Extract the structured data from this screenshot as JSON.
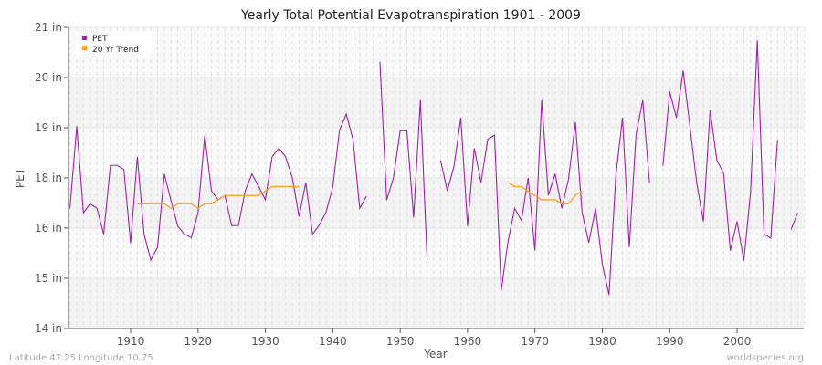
{
  "chart_data": {
    "type": "line",
    "title": "Yearly Total Potential Evapotranspiration 1901 - 2009",
    "xlabel": "Year",
    "ylabel": "PET",
    "xlim": [
      1901,
      2010
    ],
    "x_ticks": [
      1910,
      1920,
      1930,
      1940,
      1950,
      1960,
      1970,
      1980,
      1990,
      2000
    ],
    "y_ticks": [
      14,
      15,
      16,
      18,
      19,
      20,
      21
    ],
    "y_tick_labels": [
      "14 in",
      "15 in",
      "16 in",
      "18 in",
      "19 in",
      "20 in",
      "21 in"
    ],
    "grid": true,
    "legend_placement": "top-left",
    "series": [
      {
        "name": "PET",
        "color": "#a020a8",
        "start_year": 1901,
        "values": [
          16.79,
          19.03,
          16.61,
          16.97,
          16.79,
          15.88,
          18.25,
          18.25,
          18.17,
          15.7,
          18.42,
          15.88,
          15.36,
          15.62,
          18.08,
          17.09,
          16.08,
          15.88,
          15.81,
          16.61,
          18.85,
          17.48,
          17.13,
          17.3,
          16.1,
          16.1,
          17.48,
          18.08,
          17.66,
          17.13,
          18.42,
          18.59,
          18.42,
          18.0,
          16.46,
          17.82,
          15.88,
          16.12,
          16.64,
          17.64,
          18.95,
          19.27,
          18.77,
          16.79,
          17.27,
          null,
          20.31,
          17.12,
          18.0,
          18.94,
          18.94,
          16.42,
          19.55,
          15.36,
          null,
          18.35,
          17.48,
          18.24,
          19.2,
          16.08,
          18.59,
          17.82,
          18.77,
          18.85,
          14.76,
          15.73,
          16.79,
          16.3,
          18.0,
          15.55,
          19.55,
          17.31,
          18.08,
          16.79,
          17.97,
          19.11,
          16.63,
          15.71,
          16.79,
          15.28,
          14.67,
          18.03,
          19.2,
          15.62,
          18.85,
          19.55,
          17.82,
          null,
          18.24,
          19.72,
          19.2,
          20.14,
          19.03,
          17.82,
          16.27,
          19.36,
          18.35,
          18.09,
          15.55,
          16.27,
          15.35,
          17.43,
          20.74,
          15.88,
          15.8,
          18.76,
          null,
          15.97,
          16.61
        ]
      },
      {
        "name": "20 Yr Trend",
        "color": "#ffa020",
        "start_year": 1911,
        "values": [
          16.97,
          16.97,
          16.97,
          16.97,
          16.97,
          16.79,
          16.97,
          16.97,
          16.97,
          16.79,
          16.97,
          16.97,
          17.13,
          17.3,
          17.3,
          17.3,
          17.3,
          17.3,
          17.3,
          17.48,
          17.66,
          17.66,
          17.66,
          17.66,
          17.66,
          null,
          null,
          null,
          null,
          null,
          null,
          null,
          null,
          null,
          null,
          null,
          null,
          null,
          null,
          null,
          null,
          null,
          null,
          null,
          null,
          null,
          null,
          null,
          null,
          null,
          null,
          null,
          null,
          null,
          null,
          17.82,
          17.66,
          17.66,
          17.45,
          17.3,
          17.13,
          17.13,
          17.13,
          16.97,
          16.97,
          17.31,
          17.48
        ]
      }
    ]
  },
  "footer": {
    "location": "Latitude 47.25 Longitude 10.75",
    "source": "worldspecies.org"
  }
}
